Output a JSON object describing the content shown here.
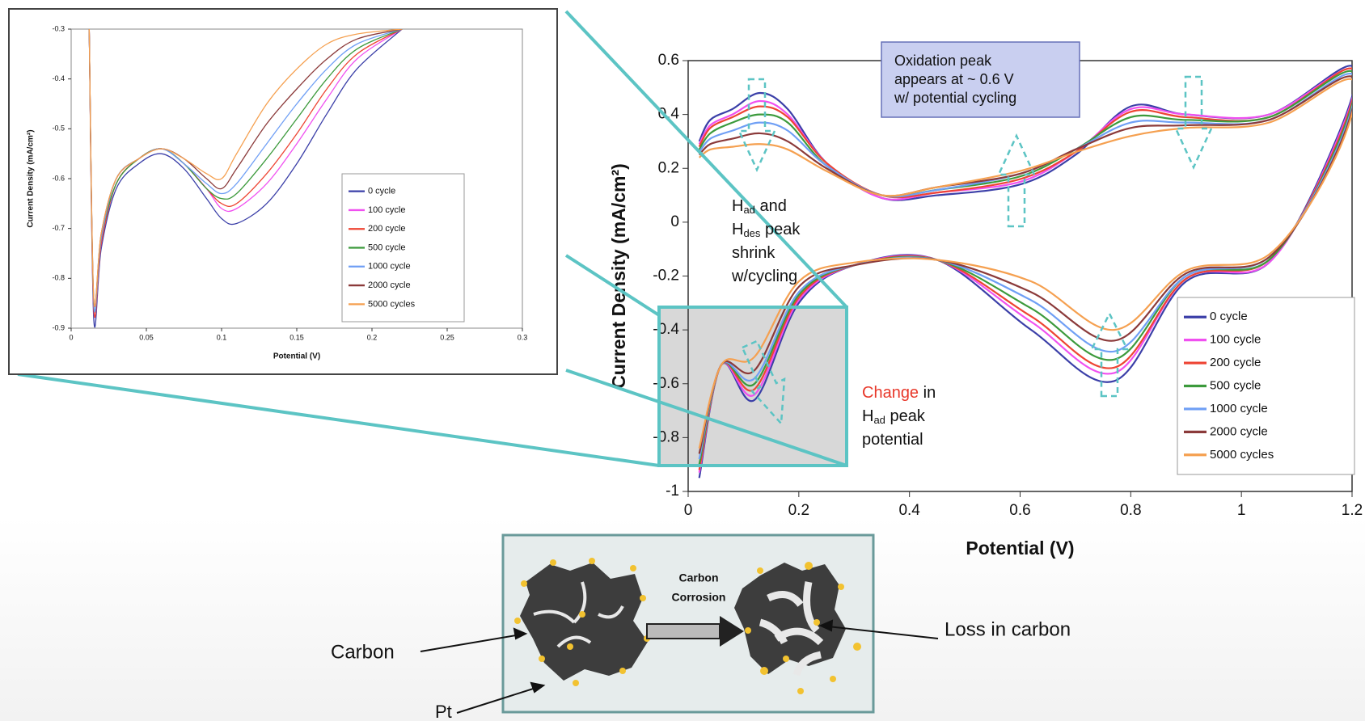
{
  "chart_data": [
    {
      "type": "line",
      "xlabel": "Potential (V)",
      "ylabel": "Current Density  (mA/cm²)",
      "xlim": [
        0,
        1.2
      ],
      "ylim": [
        -1,
        0.6
      ],
      "xticks": [
        0,
        0.2,
        0.4,
        0.6,
        0.8,
        1,
        1.2
      ],
      "yticks": [
        0.6,
        0.4,
        0.2,
        0,
        -0.2,
        -0.4,
        -0.6,
        -0.8,
        -1
      ],
      "grid": false,
      "legend": "right",
      "x": [
        0.02,
        0.04,
        0.08,
        0.13,
        0.18,
        0.25,
        0.35,
        0.45,
        0.6,
        0.7,
        0.8,
        0.9,
        1.05,
        1.2,
        1.17,
        1.05,
        0.9,
        0.77,
        0.62,
        0.45,
        0.3,
        0.2,
        0.12,
        0.06,
        0.02
      ],
      "series": [
        {
          "name": "0 cycle",
          "color": "#3b3fa8",
          "values": [
            0.3,
            0.38,
            0.42,
            0.48,
            0.42,
            0.22,
            0.09,
            0.1,
            0.14,
            0.25,
            0.43,
            0.4,
            0.4,
            0.58,
            0.3,
            -0.15,
            -0.22,
            -0.59,
            -0.4,
            -0.14,
            -0.16,
            -0.3,
            -0.66,
            -0.53,
            -0.95
          ]
        },
        {
          "name": "100 cycle",
          "color": "#f050f0",
          "values": [
            0.29,
            0.36,
            0.4,
            0.45,
            0.4,
            0.22,
            0.09,
            0.11,
            0.15,
            0.26,
            0.42,
            0.4,
            0.4,
            0.57,
            0.29,
            -0.15,
            -0.21,
            -0.56,
            -0.37,
            -0.14,
            -0.16,
            -0.29,
            -0.64,
            -0.53,
            -0.93
          ]
        },
        {
          "name": "200 cycle",
          "color": "#ee4433",
          "values": [
            0.28,
            0.35,
            0.39,
            0.43,
            0.39,
            0.22,
            0.1,
            0.11,
            0.16,
            0.26,
            0.41,
            0.39,
            0.39,
            0.57,
            0.28,
            -0.14,
            -0.21,
            -0.54,
            -0.35,
            -0.14,
            -0.16,
            -0.28,
            -0.62,
            -0.53,
            -0.92
          ]
        },
        {
          "name": "500 cycle",
          "color": "#3c9a3c",
          "values": [
            0.27,
            0.33,
            0.37,
            0.4,
            0.37,
            0.21,
            0.1,
            0.12,
            0.17,
            0.27,
            0.39,
            0.38,
            0.39,
            0.56,
            0.27,
            -0.14,
            -0.2,
            -0.51,
            -0.32,
            -0.14,
            -0.16,
            -0.27,
            -0.6,
            -0.53,
            -0.9
          ]
        },
        {
          "name": "1000 cycle",
          "color": "#6f9ff5",
          "values": [
            0.26,
            0.31,
            0.34,
            0.37,
            0.34,
            0.21,
            0.1,
            0.12,
            0.18,
            0.27,
            0.37,
            0.37,
            0.38,
            0.55,
            0.26,
            -0.13,
            -0.2,
            -0.48,
            -0.29,
            -0.14,
            -0.16,
            -0.26,
            -0.58,
            -0.53,
            -0.88
          ]
        },
        {
          "name": "2000 cycle",
          "color": "#8b3a3a",
          "values": [
            0.25,
            0.29,
            0.31,
            0.33,
            0.3,
            0.2,
            0.1,
            0.13,
            0.18,
            0.27,
            0.35,
            0.36,
            0.38,
            0.54,
            0.25,
            -0.13,
            -0.19,
            -0.44,
            -0.26,
            -0.14,
            -0.16,
            -0.24,
            -0.55,
            -0.53,
            -0.86
          ]
        },
        {
          "name": "5000 cycles",
          "color": "#f5a050",
          "values": [
            0.24,
            0.27,
            0.28,
            0.29,
            0.27,
            0.19,
            0.1,
            0.13,
            0.19,
            0.26,
            0.32,
            0.35,
            0.37,
            0.53,
            0.24,
            -0.12,
            -0.18,
            -0.4,
            -0.22,
            -0.14,
            -0.15,
            -0.22,
            -0.5,
            -0.53,
            -0.84
          ]
        }
      ]
    },
    {
      "type": "line",
      "xlabel": "Potential (V)",
      "ylabel": "Current Density  (mA/cm²)",
      "xlim": [
        0,
        0.3
      ],
      "ylim": [
        -0.9,
        -0.3
      ],
      "xticks": [
        0,
        0.05,
        0.1,
        0.15,
        0.2,
        0.25,
        0.3
      ],
      "yticks": [
        -0.3,
        -0.4,
        -0.5,
        -0.6,
        -0.7,
        -0.8,
        -0.9
      ],
      "grid": false,
      "legend": "right",
      "x": [
        0.012,
        0.015,
        0.02,
        0.03,
        0.045,
        0.06,
        0.075,
        0.09,
        0.1,
        0.11,
        0.13,
        0.15,
        0.17,
        0.19,
        0.22
      ],
      "series": [
        {
          "name": "0 cycle",
          "color": "#3b3fa8",
          "values": [
            -0.3,
            -0.88,
            -0.74,
            -0.62,
            -0.57,
            -0.55,
            -0.58,
            -0.64,
            -0.68,
            -0.69,
            -0.65,
            -0.57,
            -0.47,
            -0.38,
            -0.3
          ]
        },
        {
          "name": "100 cycle",
          "color": "#f050f0",
          "values": [
            -0.3,
            -0.86,
            -0.73,
            -0.61,
            -0.56,
            -0.54,
            -0.57,
            -0.62,
            -0.66,
            -0.66,
            -0.61,
            -0.53,
            -0.44,
            -0.36,
            -0.3
          ]
        },
        {
          "name": "200 cycle",
          "color": "#ee4433",
          "values": [
            -0.3,
            -0.86,
            -0.73,
            -0.61,
            -0.56,
            -0.54,
            -0.57,
            -0.62,
            -0.65,
            -0.65,
            -0.59,
            -0.51,
            -0.42,
            -0.35,
            -0.3
          ]
        },
        {
          "name": "500 cycle",
          "color": "#3c9a3c",
          "values": [
            -0.3,
            -0.85,
            -0.72,
            -0.61,
            -0.56,
            -0.54,
            -0.57,
            -0.62,
            -0.64,
            -0.63,
            -0.56,
            -0.48,
            -0.4,
            -0.34,
            -0.3
          ]
        },
        {
          "name": "1000 cycle",
          "color": "#6f9ff5",
          "values": [
            -0.3,
            -0.85,
            -0.72,
            -0.6,
            -0.56,
            -0.54,
            -0.57,
            -0.61,
            -0.63,
            -0.61,
            -0.53,
            -0.45,
            -0.38,
            -0.33,
            -0.3
          ]
        },
        {
          "name": "2000 cycle",
          "color": "#8b3a3a",
          "values": [
            -0.3,
            -0.84,
            -0.71,
            -0.6,
            -0.56,
            -0.54,
            -0.56,
            -0.6,
            -0.62,
            -0.58,
            -0.49,
            -0.42,
            -0.36,
            -0.32,
            -0.3
          ]
        },
        {
          "name": "5000 cycles",
          "color": "#f5a050",
          "values": [
            -0.3,
            -0.84,
            -0.71,
            -0.6,
            -0.56,
            -0.54,
            -0.56,
            -0.59,
            -0.6,
            -0.55,
            -0.45,
            -0.38,
            -0.33,
            -0.31,
            -0.3
          ]
        }
      ]
    }
  ],
  "annotations": {
    "oxidation_note": [
      "Oxidation peak",
      "appears at ~ 0.6 V",
      "w/ potential cycling"
    ],
    "h_peak_note": [
      [
        "H",
        "ad",
        " and"
      ],
      [
        "H",
        "des",
        " peak"
      ],
      [
        "shrink"
      ],
      [
        "w/cycling"
      ]
    ],
    "change_note": [
      [
        "Change",
        " in"
      ],
      [
        "H",
        "ad",
        " peak"
      ],
      [
        "potential"
      ]
    ]
  },
  "diagram": {
    "process": [
      "Carbon",
      "Corrosion"
    ],
    "carbon": "Carbon",
    "pt": "Pt",
    "loss": "Loss in carbon"
  }
}
